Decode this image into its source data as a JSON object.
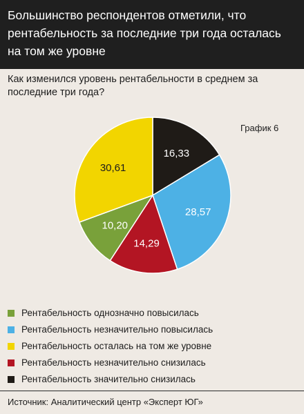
{
  "header": {
    "title": "Большинство респондентов отметили, что рентабельность за последние три года осталась на том же уровне"
  },
  "question": "Как изменился уровень рентабельности в среднем за последние три года?",
  "graph_label": "График 6",
  "legend": [
    {
      "label": "Рентабельность однозначно повысилась",
      "color": "#79a13a"
    },
    {
      "label": "Рентабельность незначительно повысилась",
      "color": "#4db1e5"
    },
    {
      "label": "Рентабельность осталась на том же уровне",
      "color": "#f2d500"
    },
    {
      "label": "Рентабельность незначительно снизилась",
      "color": "#b31523"
    },
    {
      "label": "Рентабельность значительно снизилась",
      "color": "#1f1b17"
    }
  ],
  "source": "Источник: Аналитический центр «Эксперт ЮГ»",
  "chart_data": {
    "type": "pie",
    "title": "",
    "start": "12 o'clock, clockwise",
    "slices": [
      {
        "label": "Рентабельность значительно снизилась",
        "value": 16.33,
        "display": "16,33",
        "color": "#1f1b17",
        "text_color": "#ffffff"
      },
      {
        "label": "Рентабельность незначительно повысилась",
        "value": 28.57,
        "display": "28,57",
        "color": "#4db1e5",
        "text_color": "#ffffff"
      },
      {
        "label": "Рентабельность незначительно снизилась",
        "value": 14.29,
        "display": "14,29",
        "color": "#b31523",
        "text_color": "#ffffff"
      },
      {
        "label": "Рентабельность однозначно повысилась",
        "value": 10.2,
        "display": "10,20",
        "color": "#79a13a",
        "text_color": "#ffffff"
      },
      {
        "label": "Рентабельность осталась на том же уровне",
        "value": 30.61,
        "display": "30,61",
        "color": "#f2d500",
        "text_color": "#1c1c1c"
      }
    ]
  }
}
